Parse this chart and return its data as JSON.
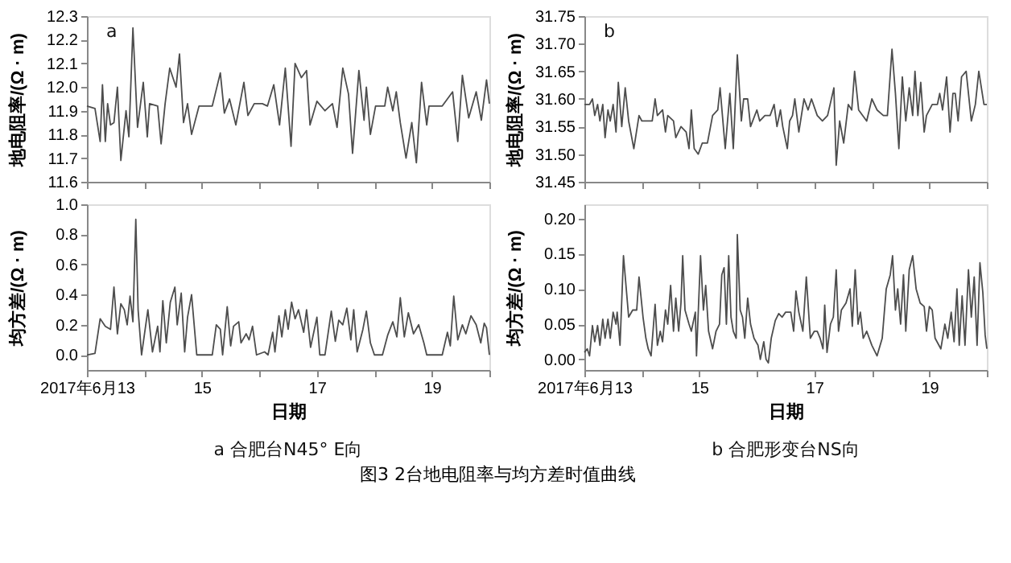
{
  "chart_data": [
    {
      "type": "line",
      "ylabel": "地电阻率/(Ω · m)",
      "annotations": [
        "a"
      ],
      "tick_labels": "y",
      "xlim": [
        13,
        20
      ],
      "xticks": [
        {
          "value": 13,
          "label": null
        },
        {
          "value": 14,
          "label": null
        },
        {
          "value": 15,
          "label": null
        },
        {
          "value": 16,
          "label": null
        },
        {
          "value": 17,
          "label": null
        },
        {
          "value": 18,
          "label": null
        },
        {
          "value": 19,
          "label": null
        },
        {
          "value": 20,
          "label": null
        }
      ],
      "ylim": [
        11.6,
        12.3
      ],
      "yticks": [
        11.6,
        11.7,
        11.8,
        11.9,
        {
          "value": 12,
          "label": "12.0"
        },
        12.1,
        12.2,
        12.3
      ],
      "series": [
        {
          "color": "#4d4d4d",
          "x": [
            13.0,
            13.14,
            13.23,
            13.27,
            13.32,
            13.36,
            13.41,
            13.47,
            13.53,
            13.59,
            13.68,
            13.73,
            13.8,
            13.88,
            13.98,
            14.05,
            14.09,
            14.23,
            14.29,
            14.36,
            14.44,
            14.55,
            14.61,
            14.68,
            14.75,
            14.82,
            14.95,
            15.18,
            15.23,
            15.32,
            15.39,
            15.48,
            15.59,
            15.73,
            15.8,
            15.91,
            16.05,
            16.14,
            16.25,
            16.35,
            16.45,
            16.55,
            16.62,
            16.73,
            16.82,
            16.88,
            17.0,
            17.14,
            17.27,
            17.35,
            17.45,
            17.55,
            17.62,
            17.73,
            17.82,
            17.86,
            17.93,
            18.02,
            18.18,
            18.23,
            18.32,
            18.38,
            18.45,
            18.55,
            18.65,
            18.73,
            18.82,
            18.91,
            18.95,
            19.18,
            19.36,
            19.45,
            19.53,
            19.64,
            19.77,
            19.86,
            19.95,
            20.0
          ],
          "values": [
            11.92,
            11.91,
            11.77,
            12.01,
            11.77,
            11.93,
            11.84,
            11.85,
            12.0,
            11.69,
            11.9,
            11.79,
            12.25,
            11.83,
            12.02,
            11.79,
            11.93,
            11.92,
            11.76,
            11.93,
            12.08,
            12.0,
            12.14,
            11.85,
            11.93,
            11.8,
            11.92,
            11.92,
            11.97,
            12.06,
            11.89,
            11.95,
            11.84,
            12.02,
            11.88,
            11.93,
            11.93,
            11.92,
            12.01,
            11.84,
            12.08,
            11.75,
            12.1,
            12.04,
            12.07,
            11.84,
            11.94,
            11.9,
            11.93,
            11.83,
            12.08,
            11.97,
            11.72,
            12.07,
            11.86,
            12.0,
            11.8,
            11.92,
            11.92,
            12.0,
            11.9,
            11.98,
            11.85,
            11.7,
            11.85,
            11.68,
            12.02,
            11.84,
            11.92,
            11.92,
            11.98,
            11.77,
            12.05,
            11.87,
            11.98,
            11.86,
            12.03,
            11.93
          ]
        }
      ]
    },
    {
      "type": "line",
      "ylabel": "地电阻率/(Ω · m)",
      "annotations": [
        "b"
      ],
      "tick_labels": "y",
      "xlim": [
        13,
        20
      ],
      "xticks": [
        {
          "value": 13,
          "label": null
        },
        {
          "value": 14,
          "label": null
        },
        {
          "value": 15,
          "label": null
        },
        {
          "value": 16,
          "label": null
        },
        {
          "value": 17,
          "label": null
        },
        {
          "value": 18,
          "label": null
        },
        {
          "value": 19,
          "label": null
        },
        {
          "value": 20,
          "label": null
        }
      ],
      "ylim": [
        31.45,
        31.75
      ],
      "yticks": [
        31.45,
        {
          "value": 31.5,
          "label": "31.50"
        },
        31.55,
        {
          "value": 31.6,
          "label": "31.60"
        },
        31.65,
        {
          "value": 31.7,
          "label": "31.70"
        },
        31.75
      ],
      "series": [
        {
          "color": "#4d4d4d",
          "x": [
            13.0,
            13.09,
            13.14,
            13.18,
            13.23,
            13.27,
            13.32,
            13.36,
            13.41,
            13.45,
            13.5,
            13.55,
            13.59,
            13.65,
            13.71,
            13.77,
            13.86,
            13.95,
            14.0,
            14.18,
            14.23,
            14.27,
            14.36,
            14.41,
            14.45,
            14.55,
            14.59,
            14.68,
            14.77,
            14.82,
            14.86,
            14.91,
            14.98,
            15.05,
            15.14,
            15.23,
            15.32,
            15.36,
            15.45,
            15.53,
            15.59,
            15.66,
            15.73,
            15.77,
            15.84,
            15.89,
            16.0,
            16.05,
            16.14,
            16.23,
            16.3,
            16.35,
            16.41,
            16.45,
            16.53,
            16.57,
            16.62,
            16.66,
            16.73,
            16.82,
            16.89,
            16.95,
            17.05,
            17.14,
            17.23,
            17.34,
            17.38,
            17.44,
            17.51,
            17.59,
            17.65,
            17.7,
            17.77,
            17.91,
            18.0,
            18.09,
            18.2,
            18.27,
            18.35,
            18.41,
            18.47,
            18.53,
            18.59,
            18.65,
            18.71,
            18.75,
            18.8,
            18.85,
            18.91,
            18.95,
            19.05,
            19.14,
            19.18,
            19.23,
            19.3,
            19.36,
            19.41,
            19.45,
            19.5,
            19.56,
            19.64,
            19.73,
            19.8,
            19.86,
            19.95,
            20.0
          ],
          "values": [
            31.59,
            31.59,
            31.6,
            31.57,
            31.59,
            31.56,
            31.59,
            31.53,
            31.58,
            31.56,
            31.59,
            31.54,
            31.63,
            31.55,
            31.62,
            31.56,
            31.51,
            31.57,
            31.56,
            31.56,
            31.6,
            31.57,
            31.58,
            31.54,
            31.57,
            31.56,
            31.53,
            31.55,
            31.54,
            31.51,
            31.58,
            31.51,
            31.5,
            31.52,
            31.52,
            31.57,
            31.58,
            31.62,
            31.51,
            31.61,
            31.51,
            31.68,
            31.56,
            31.6,
            31.6,
            31.55,
            31.58,
            31.56,
            31.57,
            31.57,
            31.59,
            31.55,
            31.58,
            31.55,
            31.51,
            31.56,
            31.57,
            31.6,
            31.54,
            31.6,
            31.58,
            31.6,
            31.57,
            31.56,
            31.57,
            31.62,
            31.48,
            31.56,
            31.52,
            31.59,
            31.58,
            31.65,
            31.58,
            31.56,
            31.6,
            31.58,
            31.57,
            31.57,
            31.69,
            31.61,
            31.51,
            31.64,
            31.56,
            31.62,
            31.57,
            31.65,
            31.57,
            31.63,
            31.54,
            31.57,
            31.59,
            31.59,
            31.61,
            31.58,
            31.64,
            31.54,
            31.61,
            31.61,
            31.56,
            31.64,
            31.65,
            31.56,
            31.59,
            31.65,
            31.59,
            31.59
          ]
        }
      ]
    },
    {
      "type": "line",
      "xlabel": "日期",
      "ylabel": "均方差/(Ω · m)",
      "annotations": [
        "a 合肥台N45° E向"
      ],
      "xlim": [
        13,
        20
      ],
      "xticks": [
        {
          "value": 13,
          "label": "2017年6月13"
        },
        {
          "value": 14,
          "label": null
        },
        15,
        {
          "value": 16,
          "label": null
        },
        17,
        {
          "value": 18,
          "label": null
        },
        19,
        {
          "value": 20,
          "label": null
        }
      ],
      "ylim": [
        -0.1,
        1.0
      ],
      "yticks": [
        {
          "value": 0,
          "label": "0.0"
        },
        0.2,
        0.4,
        0.6,
        0.8,
        {
          "value": 1,
          "label": "1.0"
        }
      ],
      "series": [
        {
          "color": "#4d4d4d",
          "x": [
            13.0,
            13.14,
            13.23,
            13.32,
            13.41,
            13.47,
            13.53,
            13.59,
            13.65,
            13.7,
            13.75,
            13.8,
            13.85,
            13.89,
            13.95,
            14.06,
            14.14,
            14.23,
            14.27,
            14.32,
            14.38,
            14.45,
            14.53,
            14.57,
            14.64,
            14.7,
            14.75,
            14.82,
            14.91,
            15.18,
            15.25,
            15.32,
            15.36,
            15.44,
            15.5,
            15.55,
            15.64,
            15.68,
            15.77,
            15.82,
            15.88,
            15.95,
            16.09,
            16.15,
            16.23,
            16.27,
            16.34,
            16.39,
            16.45,
            16.5,
            16.56,
            16.62,
            16.68,
            16.77,
            16.82,
            16.89,
            17.0,
            17.05,
            17.14,
            17.25,
            17.32,
            17.38,
            17.45,
            17.52,
            17.59,
            17.64,
            17.7,
            17.8,
            17.86,
            17.93,
            18.0,
            18.14,
            18.23,
            18.32,
            18.39,
            18.45,
            18.52,
            18.59,
            18.68,
            18.77,
            18.86,
            18.91,
            19.05,
            19.18,
            19.27,
            19.32,
            19.38,
            19.45,
            19.53,
            19.59,
            19.68,
            19.77,
            19.85,
            19.91,
            19.95,
            20.0
          ],
          "values": [
            0.0,
            0.01,
            0.24,
            0.19,
            0.17,
            0.45,
            0.14,
            0.34,
            0.3,
            0.2,
            0.39,
            0.22,
            0.9,
            0.3,
            0.0,
            0.3,
            0.02,
            0.19,
            0.02,
            0.36,
            0.08,
            0.35,
            0.45,
            0.2,
            0.41,
            0.02,
            0.25,
            0.4,
            0.0,
            0.0,
            0.2,
            0.17,
            0.0,
            0.32,
            0.06,
            0.19,
            0.22,
            0.08,
            0.14,
            0.1,
            0.19,
            0.0,
            0.02,
            0.0,
            0.15,
            0.02,
            0.26,
            0.12,
            0.3,
            0.17,
            0.35,
            0.24,
            0.3,
            0.15,
            0.3,
            0.05,
            0.25,
            0.0,
            0.0,
            0.29,
            0.09,
            0.23,
            0.2,
            0.31,
            0.1,
            0.3,
            0.02,
            0.17,
            0.29,
            0.08,
            0.0,
            0.0,
            0.13,
            0.22,
            0.12,
            0.38,
            0.12,
            0.28,
            0.14,
            0.2,
            0.08,
            0.0,
            0.0,
            0.0,
            0.15,
            0.06,
            0.39,
            0.1,
            0.2,
            0.14,
            0.26,
            0.2,
            0.08,
            0.21,
            0.18,
            0.0
          ]
        }
      ]
    },
    {
      "type": "line",
      "xlabel": "日期",
      "ylabel": "均方差/(Ω · m)",
      "annotations": [
        "b 合肥形变台NS向",
        "图3  2台地电阻率与均方差时值曲线"
      ],
      "xlim": [
        13,
        20
      ],
      "xticks": [
        {
          "value": 13,
          "label": "2017年6月13"
        },
        {
          "value": 14,
          "label": null
        },
        15,
        {
          "value": 16,
          "label": null
        },
        17,
        {
          "value": 18,
          "label": null
        },
        19,
        {
          "value": 20,
          "label": null
        }
      ],
      "ylim": [
        -0.015,
        0.22
      ],
      "yticks": [
        {
          "value": 0,
          "label": "0.00"
        },
        0.05,
        {
          "value": 0.1,
          "label": "0.10"
        },
        0.15,
        {
          "value": 0.2,
          "label": "0.20"
        }
      ],
      "series": [
        {
          "color": "#4d4d4d",
          "x": [
            13.0,
            13.05,
            13.09,
            13.14,
            13.18,
            13.23,
            13.27,
            13.32,
            13.36,
            13.41,
            13.45,
            13.5,
            13.55,
            13.57,
            13.62,
            13.68,
            13.77,
            13.84,
            13.91,
            13.95,
            14.02,
            14.07,
            14.11,
            14.16,
            14.23,
            14.27,
            14.32,
            14.36,
            14.41,
            14.45,
            14.5,
            14.55,
            14.59,
            14.64,
            14.68,
            14.71,
            14.75,
            14.82,
            14.86,
            14.93,
            14.95,
            15.02,
            15.07,
            15.11,
            15.16,
            15.23,
            15.29,
            15.35,
            15.39,
            15.43,
            15.47,
            15.51,
            15.55,
            15.59,
            15.64,
            15.66,
            15.71,
            15.75,
            15.79,
            15.84,
            15.89,
            15.95,
            16.02,
            16.06,
            16.12,
            16.16,
            16.2,
            16.25,
            16.32,
            16.38,
            16.44,
            16.5,
            16.59,
            16.64,
            16.68,
            16.73,
            16.8,
            16.86,
            16.93,
            17.0,
            17.05,
            17.1,
            17.15,
            17.18,
            17.22,
            17.28,
            17.33,
            17.38,
            17.42,
            17.47,
            17.55,
            17.62,
            17.66,
            17.71,
            17.76,
            17.8,
            17.85,
            17.91,
            18.0,
            18.09,
            18.18,
            18.25,
            18.32,
            18.36,
            18.41,
            18.45,
            18.5,
            18.55,
            18.59,
            18.65,
            18.71,
            18.77,
            18.84,
            18.91,
            18.95,
            19.0,
            19.05,
            19.1,
            19.2,
            19.27,
            19.32,
            19.38,
            19.43,
            19.48,
            19.52,
            19.57,
            19.62,
            19.68,
            19.73,
            19.78,
            19.83,
            19.88,
            19.93,
            19.97,
            20.0
          ],
          "values": [
            0.01,
            0.015,
            0.005,
            0.048,
            0.025,
            0.048,
            0.02,
            0.057,
            0.03,
            0.057,
            0.03,
            0.067,
            0.05,
            0.067,
            0.02,
            0.147,
            0.06,
            0.07,
            0.07,
            0.117,
            0.06,
            0.03,
            0.015,
            0.005,
            0.078,
            0.02,
            0.04,
            0.025,
            0.07,
            0.05,
            0.105,
            0.04,
            0.087,
            0.04,
            0.08,
            0.147,
            0.07,
            0.05,
            0.04,
            0.067,
            0.005,
            0.147,
            0.07,
            0.105,
            0.04,
            0.015,
            0.04,
            0.05,
            0.12,
            0.13,
            0.05,
            0.147,
            0.06,
            0.04,
            0.03,
            0.177,
            0.07,
            0.06,
            0.03,
            0.087,
            0.05,
            0.03,
            0.02,
            0.0,
            0.025,
            0.0,
            -0.005,
            0.03,
            0.055,
            0.065,
            0.06,
            0.067,
            0.067,
            0.04,
            0.097,
            0.067,
            0.04,
            0.117,
            0.03,
            0.04,
            0.04,
            0.03,
            0.015,
            0.077,
            0.01,
            0.05,
            0.06,
            0.127,
            0.04,
            0.07,
            0.08,
            0.1,
            0.047,
            0.127,
            0.05,
            0.067,
            0.03,
            0.04,
            0.02,
            0.005,
            0.03,
            0.1,
            0.12,
            0.147,
            0.07,
            0.1,
            0.05,
            0.12,
            0.04,
            0.127,
            0.147,
            0.1,
            0.08,
            0.075,
            0.04,
            0.075,
            0.07,
            0.03,
            0.015,
            0.05,
            0.03,
            0.067,
            0.025,
            0.1,
            0.02,
            0.09,
            0.02,
            0.127,
            0.06,
            0.117,
            0.02,
            0.137,
            0.095,
            0.035,
            0.015
          ]
        }
      ]
    }
  ]
}
